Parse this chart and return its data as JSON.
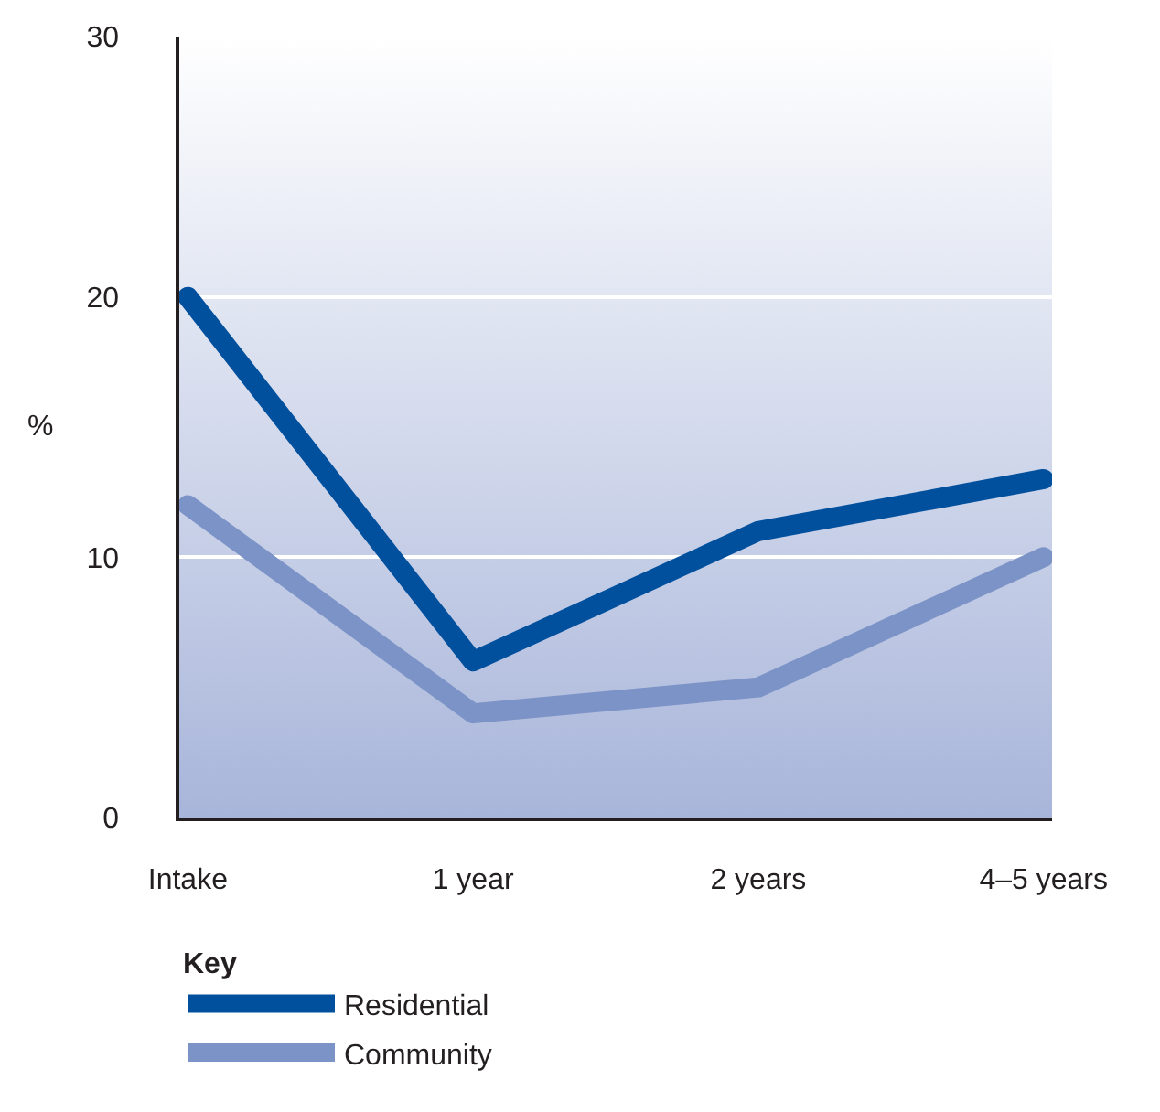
{
  "chart_data": {
    "type": "line",
    "categories": [
      "Intake",
      "1 year",
      "2 years",
      "4–5 years"
    ],
    "ylabel": "%",
    "ylim": [
      0,
      30
    ],
    "yticks": [
      0,
      10,
      20,
      30
    ],
    "grid": "y",
    "legend": "bottom left",
    "legend_title": "Key",
    "marker": "none",
    "line_style": "solid",
    "series": [
      {
        "name": "Residential",
        "color": "#00509e",
        "values": [
          20,
          6,
          11,
          13
        ]
      },
      {
        "name": "Community",
        "color": "#7b93c6",
        "values": [
          12,
          4,
          5,
          10
        ]
      }
    ]
  }
}
